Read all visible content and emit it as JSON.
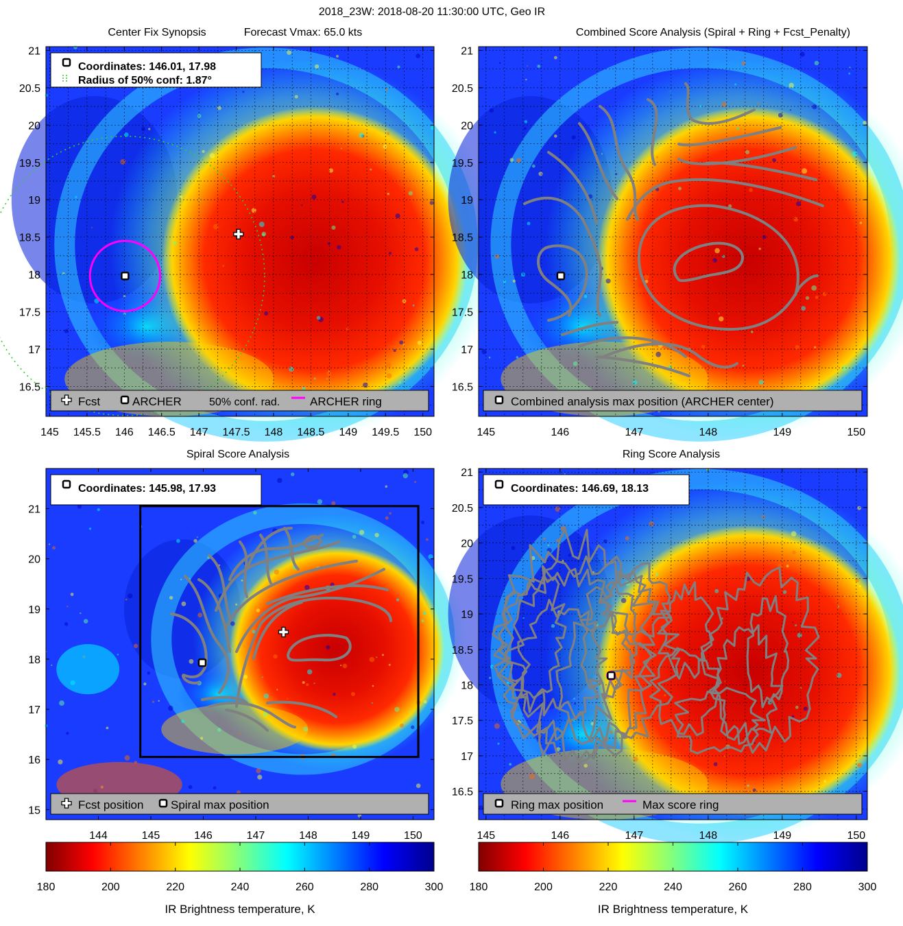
{
  "figure_title": "2018_23W: 2018-08-20 11:30:00 UTC, Geo IR",
  "colors": {
    "background": "#ffffff",
    "contour": "#808080",
    "ring": "#ff00ff",
    "conf_radius": "#33cc33",
    "legend_bg": "#b0b0b0",
    "box": "#000000"
  },
  "chart_data": [
    {
      "id": "center_fix",
      "type": "heatmap",
      "title_left": "Center Fix Synopsis",
      "title_right": "Forecast Vmax: 65.0 kts",
      "xlim": [
        144.95,
        150.15
      ],
      "ylim": [
        16.1,
        21.05
      ],
      "xticks": [
        145,
        145.5,
        146,
        146.5,
        147,
        147.5,
        148,
        148.5,
        149,
        149.5,
        150
      ],
      "xtick_labels": [
        "145",
        "145.5",
        "146",
        "146.5",
        "147",
        "147.5",
        "148",
        "148.5",
        "149",
        "149.5",
        "150"
      ],
      "yticks": [
        16.5,
        17,
        17.5,
        18,
        18.5,
        19,
        19.5,
        20,
        20.5,
        21
      ],
      "ytick_labels": [
        "16.5",
        "17",
        "17.5",
        "18",
        "18.5",
        "19",
        "19.5",
        "20",
        "20.5",
        "21"
      ],
      "grid": true,
      "info_lines": [
        "Coordinates: 146.01, 17.98",
        "Radius of 50% conf: 1.87°"
      ],
      "points": {
        "archer": [
          146.01,
          17.98
        ],
        "forecast": [
          147.53,
          18.54
        ]
      },
      "ring_radius_deg": 0.47,
      "conf_radius_deg": 1.87,
      "legend": [
        "Fcst",
        "ARCHER",
        "50% conf. rad.",
        "ARCHER ring"
      ]
    },
    {
      "id": "combined",
      "type": "heatmap",
      "title": "Combined Score Analysis (Spiral + Ring + Fcst_Penalty)",
      "xlim": [
        144.9,
        150.15
      ],
      "ylim": [
        16.1,
        21.05
      ],
      "xticks": [
        145,
        146,
        147,
        148,
        149,
        150
      ],
      "xtick_labels": [
        "145",
        "146",
        "147",
        "148",
        "149",
        "150"
      ],
      "yticks": [
        16.5,
        17,
        17.5,
        18,
        18.5,
        19,
        19.5,
        20,
        20.5,
        21
      ],
      "ytick_labels": [
        "16.5",
        "17",
        "17.5",
        "18",
        "18.5",
        "19",
        "19.5",
        "20",
        "20.5",
        "21"
      ],
      "grid": true,
      "points": {
        "max": [
          146.01,
          17.98
        ]
      },
      "legend": [
        "Combined analysis max position (ARCHER center)"
      ]
    },
    {
      "id": "spiral",
      "type": "heatmap",
      "title": "Spiral Score Analysis",
      "xlim": [
        143.0,
        150.4
      ],
      "ylim": [
        14.8,
        21.8
      ],
      "xticks": [
        144,
        145,
        146,
        147,
        148,
        149,
        150
      ],
      "xtick_labels": [
        "144",
        "145",
        "146",
        "147",
        "148",
        "149",
        "150"
      ],
      "yticks": [
        15,
        16,
        17,
        18,
        19,
        20,
        21
      ],
      "ytick_labels": [
        "15",
        "16",
        "17",
        "18",
        "19",
        "20",
        "21"
      ],
      "grid": false,
      "info_lines": [
        "Coordinates: 145.98, 17.93"
      ],
      "points": {
        "max": [
          145.98,
          17.93
        ],
        "forecast": [
          147.53,
          18.54
        ]
      },
      "box": {
        "lon": [
          144.8,
          150.1
        ],
        "lat": [
          16.05,
          21.05
        ]
      },
      "legend": [
        "Fcst position",
        "Spiral max position"
      ]
    },
    {
      "id": "ring",
      "type": "heatmap",
      "title": "Ring Score Analysis",
      "xlim": [
        144.9,
        150.15
      ],
      "ylim": [
        16.1,
        21.05
      ],
      "xticks": [
        145,
        146,
        147,
        148,
        149,
        150
      ],
      "xtick_labels": [
        "145",
        "146",
        "147",
        "148",
        "149",
        "150"
      ],
      "yticks": [
        16.5,
        17,
        17.5,
        18,
        18.5,
        19,
        19.5,
        20,
        20.5,
        21
      ],
      "ytick_labels": [
        "16.5",
        "17",
        "17.5",
        "18",
        "18.5",
        "19",
        "19.5",
        "20",
        "20.5",
        "21"
      ],
      "grid": true,
      "info_lines": [
        "Coordinates: 146.69, 18.13"
      ],
      "points": {
        "max": [
          146.69,
          18.13
        ]
      },
      "legend": [
        "Ring max position",
        "Max score ring"
      ]
    }
  ],
  "colorbars": [
    {
      "range": [
        180,
        300
      ],
      "ticks": [
        180,
        200,
        220,
        240,
        260,
        280,
        300
      ],
      "tick_labels": [
        "180",
        "200",
        "220",
        "240",
        "260",
        "280",
        "300"
      ],
      "label": "IR Brightness temperature, K"
    },
    {
      "range": [
        180,
        300
      ],
      "ticks": [
        180,
        200,
        220,
        240,
        260,
        280,
        300
      ],
      "tick_labels": [
        "180",
        "200",
        "220",
        "240",
        "260",
        "280",
        "300"
      ],
      "label": "IR Brightness temperature, K"
    }
  ]
}
